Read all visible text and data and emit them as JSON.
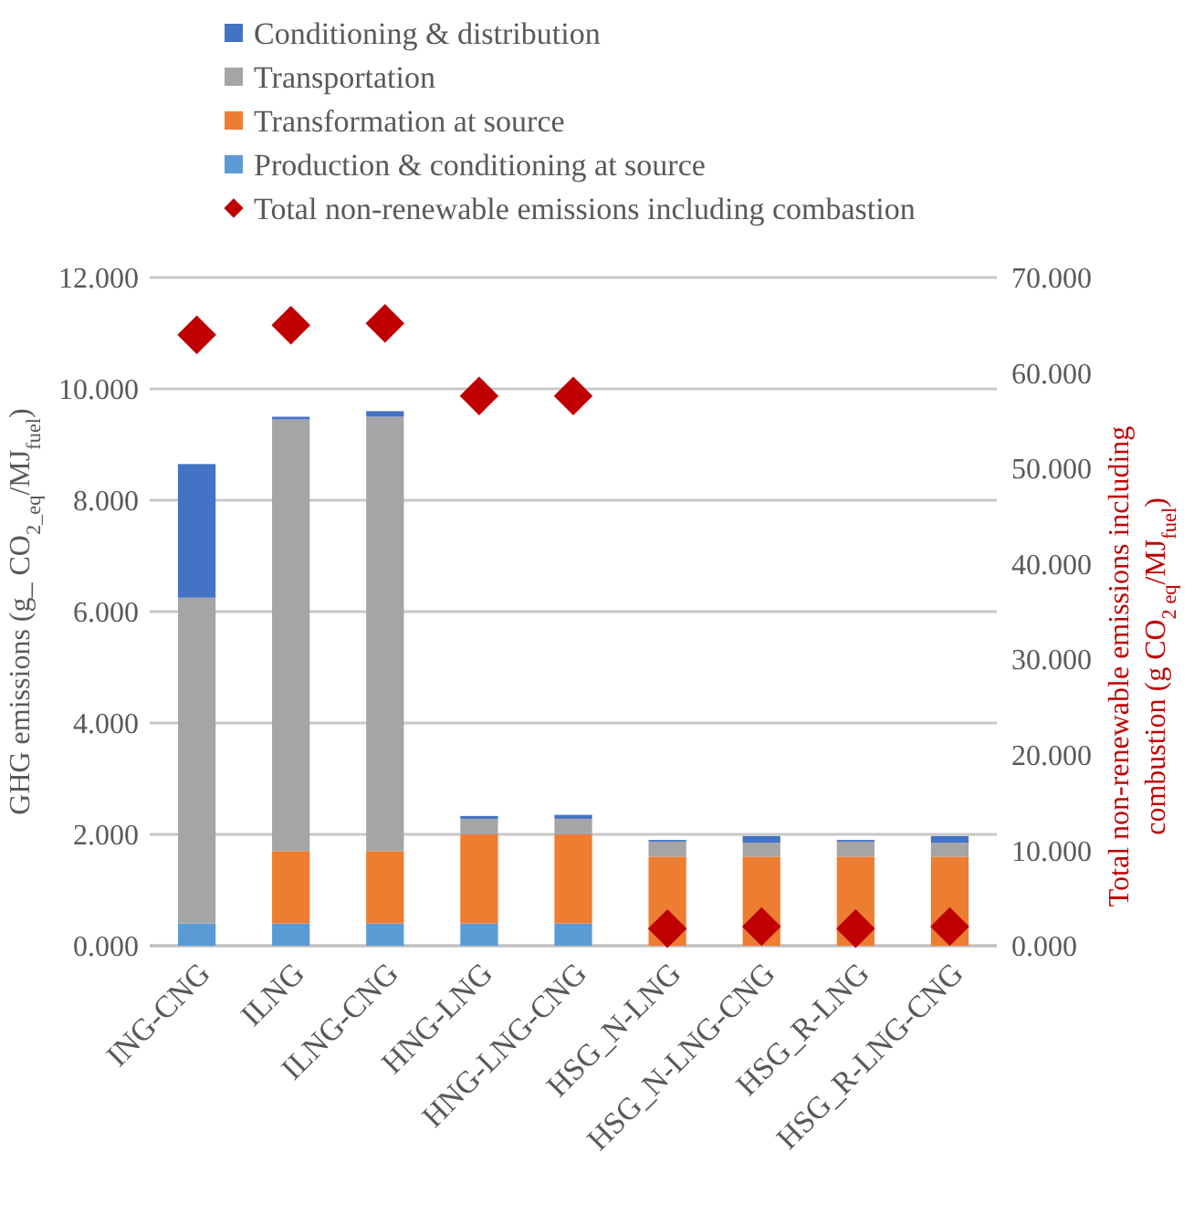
{
  "chart_data": {
    "type": "bar",
    "stacked": true,
    "categories": [
      "ING-CNG",
      "ILNG",
      "ILNG-CNG",
      "HNG-LNG",
      "HNG-LNG-CNG",
      "HSG_N-LNG",
      "HSG_N-LNG-CNG",
      "HSG_R-LNG",
      "HSG_R-LNG-CNG"
    ],
    "series": [
      {
        "name": "Production & conditioning at source",
        "color": "#5b9bd5",
        "values": [
          0.4,
          0.4,
          0.4,
          0.4,
          0.4,
          0,
          0,
          0,
          0
        ]
      },
      {
        "name": "Transformation at source",
        "color": "#ed7d31",
        "values": [
          0,
          1.3,
          1.3,
          1.6,
          1.6,
          1.6,
          1.6,
          1.6,
          1.6
        ]
      },
      {
        "name": "Transportation",
        "color": "#a5a5a5",
        "values": [
          5.85,
          7.75,
          7.8,
          0.28,
          0.28,
          0.27,
          0.25,
          0.27,
          0.25
        ]
      },
      {
        "name": "Conditioning & distribution",
        "color": "#4472c4",
        "values": [
          2.4,
          0.05,
          0.1,
          0.05,
          0.07,
          0.03,
          0.12,
          0.03,
          0.12
        ]
      },
      {
        "name": "Total non-renewable emissions including combastion",
        "type": "scatter",
        "axis": "y2",
        "marker": "diamond",
        "color": "#c00000",
        "values": [
          64.0,
          65.0,
          65.2,
          57.6,
          57.6,
          1.8,
          2.0,
          1.8,
          2.0
        ]
      }
    ],
    "ylabel": "GHG emissions (g_ CO$_{2_eq}$/MJ$_{fuel}$)",
    "y2label": "Total non-renewable emissions including combustion (g  CO$_{2 eq}$/MJ$_{fuel}$)",
    "ylim": [
      0,
      12
    ],
    "yticks": [
      {
        "value": 0,
        "label": "0.000"
      },
      {
        "value": 2,
        "label": "2.000"
      },
      {
        "value": 4,
        "label": "4.000"
      },
      {
        "value": 6,
        "label": "6.000"
      },
      {
        "value": 8,
        "label": "8.000"
      },
      {
        "value": 10,
        "label": "10.000"
      },
      {
        "value": 12,
        "label": "12.000"
      }
    ],
    "y2lim": [
      0,
      70
    ],
    "y2ticks": [
      {
        "value": 0,
        "label": "0.000"
      },
      {
        "value": 10,
        "label": "10.000"
      },
      {
        "value": 20,
        "label": "20.000"
      },
      {
        "value": 30,
        "label": "30.000"
      },
      {
        "value": 40,
        "label": "40.000"
      },
      {
        "value": 50,
        "label": "50.000"
      },
      {
        "value": 60,
        "label": "60.000"
      },
      {
        "value": 70,
        "label": "70.000"
      }
    ],
    "grid": "y",
    "legend": "top"
  }
}
